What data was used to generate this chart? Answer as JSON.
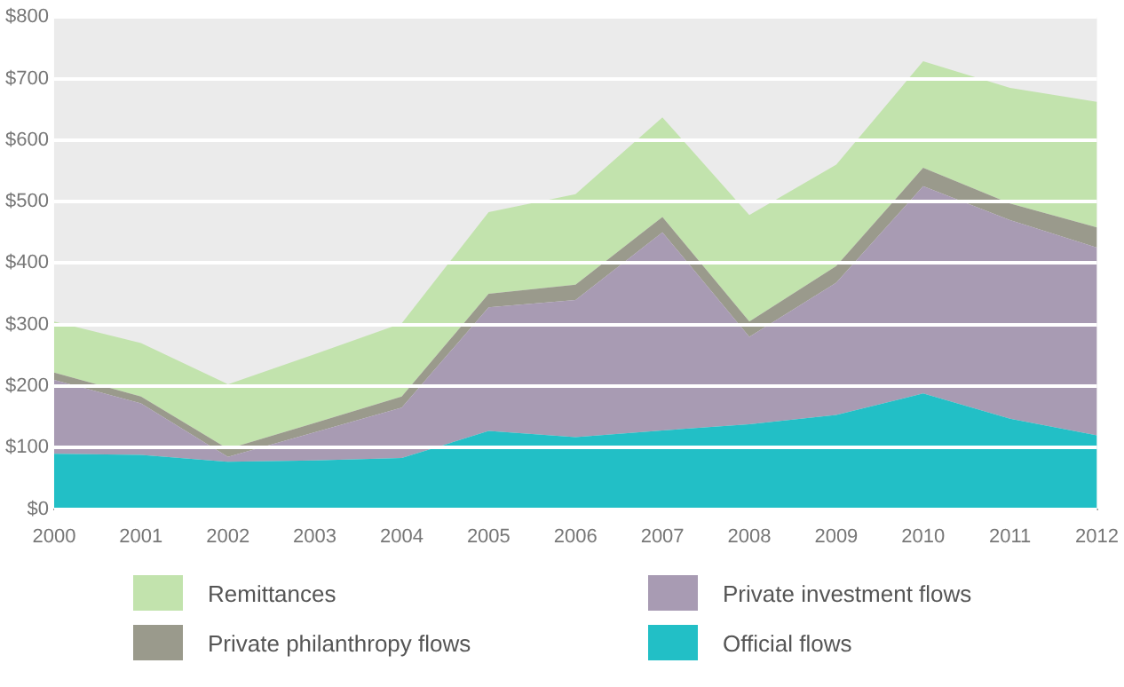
{
  "chart_data": {
    "type": "area",
    "stacked": true,
    "categories": [
      "2000",
      "2001",
      "2002",
      "2003",
      "2004",
      "2005",
      "2006",
      "2007",
      "2008",
      "2009",
      "2010",
      "2011",
      "2012"
    ],
    "series": [
      {
        "name": "Official flows",
        "color": "#22bfc6",
        "values": [
          90,
          88,
          77,
          79,
          83,
          127,
          117,
          128,
          138,
          153,
          188,
          147,
          120
        ]
      },
      {
        "name": "Private investment flows",
        "color": "#a89bb3",
        "values": [
          120,
          84,
          8,
          46,
          82,
          201,
          223,
          322,
          142,
          215,
          337,
          323,
          305
        ]
      },
      {
        "name": "Private philanthropy flows",
        "color": "#9a9a8c",
        "values": [
          12,
          11,
          13,
          15,
          18,
          22,
          25,
          25,
          25,
          27,
          30,
          27,
          33
        ]
      },
      {
        "name": "Remittances",
        "color": "#c2e3ad",
        "values": [
          83,
          87,
          105,
          112,
          119,
          133,
          147,
          162,
          173,
          165,
          173,
          188,
          204
        ]
      }
    ],
    "ylim": [
      0,
      800
    ],
    "yticks": [
      {
        "value": 0,
        "label": "$0"
      },
      {
        "value": 100,
        "label": "$100"
      },
      {
        "value": 200,
        "label": "$200"
      },
      {
        "value": 300,
        "label": "$300"
      },
      {
        "value": 400,
        "label": "$400"
      },
      {
        "value": 500,
        "label": "$500"
      },
      {
        "value": 600,
        "label": "$600"
      },
      {
        "value": 700,
        "label": "$700"
      },
      {
        "value": 800,
        "label": "$800"
      }
    ],
    "grid": "y",
    "legend": "bottom"
  }
}
